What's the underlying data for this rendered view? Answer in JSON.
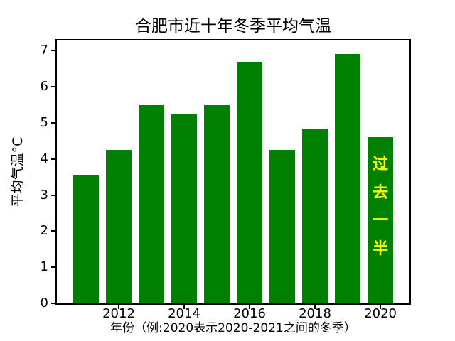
{
  "chart_data": {
    "type": "bar",
    "title": "合肥市近十年冬季平均气温",
    "xlabel": "年份（例:2020表示2020-2021之间的冬季）",
    "ylabel": "平均气温°C",
    "categories": [
      2011,
      2012,
      2013,
      2014,
      2015,
      2016,
      2017,
      2018,
      2019,
      2020
    ],
    "values": [
      3.55,
      4.25,
      5.5,
      5.25,
      5.5,
      6.7,
      4.25,
      4.85,
      6.9,
      4.6
    ],
    "bar_color": "#008000",
    "bar_width_data_units": 0.8,
    "xticks": [
      2012,
      2014,
      2016,
      2018,
      2020
    ],
    "xtick_labels": [
      "2012",
      "2014",
      "2016",
      "2018",
      "2020"
    ],
    "yticks": [
      0,
      1,
      2,
      3,
      4,
      5,
      6,
      7
    ],
    "ytick_labels": [
      "0",
      "1",
      "2",
      "3",
      "4",
      "5",
      "6",
      "7"
    ],
    "xlim": [
      2010.11,
      2020.89
    ],
    "ylim": [
      0,
      7.28
    ],
    "grid": false,
    "background": "#FFFFFF",
    "text_color": "#000000",
    "annotation": {
      "text": "过去一半",
      "chars": [
        "过",
        "去",
        "一",
        "半"
      ],
      "color": "#FFFF00",
      "bold": true,
      "on_category": 2020,
      "orientation": "vertical-stack"
    }
  }
}
